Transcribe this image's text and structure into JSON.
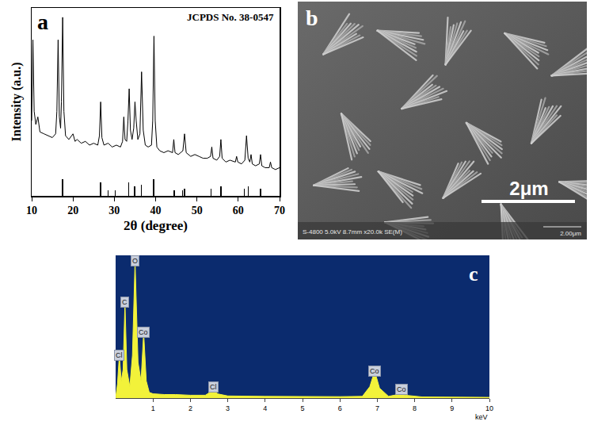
{
  "chart_data": [
    {
      "panel": "a",
      "type": "line",
      "title": "JCPDS No. 38-0547",
      "x_label": "2θ (degree)",
      "y_label": "Intensity (a.u.)",
      "xlim": [
        10,
        70
      ],
      "xticks": [
        10,
        20,
        30,
        40,
        50,
        60,
        70
      ],
      "ylim": [
        0,
        100
      ],
      "tick_labels": "x",
      "grid": false,
      "series": [
        {
          "type": "line",
          "color": "#000000",
          "x": [
            10,
            10.3,
            10.6,
            11,
            11.5,
            12,
            13,
            14,
            15,
            15.8,
            16.1,
            16.4,
            16.7,
            17,
            17.2,
            17.5,
            17.8,
            18.2,
            19,
            20,
            20.5,
            21,
            22,
            23,
            24,
            25,
            26,
            26.4,
            26.7,
            27,
            27.5,
            28.5,
            29.5,
            30.5,
            31.5,
            32,
            32.3,
            32.6,
            33,
            33.3,
            33.6,
            33.9,
            34.3,
            34.7,
            35,
            35.3,
            35.7,
            36.2,
            36.6,
            37,
            37.5,
            38.2,
            39,
            39.3,
            39.6,
            39.9,
            40.3,
            41,
            42,
            43,
            44.1,
            44.4,
            44.7,
            45.5,
            46.6,
            47,
            47.4,
            48.5,
            49.5,
            50.5,
            51.5,
            52.5,
            53.3,
            53.6,
            53.9,
            54.8,
            55.5,
            55.8,
            56.1,
            57,
            58,
            59.3,
            59.6,
            59.9,
            60.8,
            61.6,
            62,
            62.4,
            62.8,
            63.1,
            63.4,
            64.2,
            65.1,
            65.4,
            65.7,
            66.5,
            67.5,
            67.8,
            68.1,
            69,
            70
          ],
          "values": [
            40,
            83,
            45,
            38,
            42,
            34,
            33,
            32,
            31,
            33,
            45,
            83,
            42,
            36,
            50,
            95,
            45,
            32,
            30,
            33,
            29,
            30,
            28,
            29,
            27,
            28,
            27,
            32,
            50,
            31,
            27,
            28,
            26,
            27,
            26,
            29,
            42,
            30,
            29,
            40,
            57,
            35,
            30,
            36,
            50,
            40,
            30,
            33,
            66,
            35,
            27,
            26,
            27,
            40,
            85,
            40,
            26,
            24,
            23,
            24,
            23,
            30,
            23,
            22,
            24,
            33,
            23,
            21,
            22,
            21,
            20,
            20,
            21,
            26,
            20,
            19,
            21,
            30,
            20,
            18,
            19,
            18,
            21,
            18,
            17,
            19,
            32,
            20,
            18,
            22,
            17,
            16,
            17,
            22,
            16,
            15,
            15,
            18,
            15,
            14,
            15
          ]
        },
        {
          "type": "bar",
          "color": "#000000",
          "x": [
            17.5,
            26.7,
            28.5,
            30.2,
            33.5,
            34.9,
            36.5,
            39.5,
            44.5,
            46.5,
            47,
            53.4,
            55.8,
            61.5,
            62.4,
            65.4
          ],
          "values": [
            9,
            7,
            3,
            3,
            7,
            5,
            6,
            9,
            3,
            3,
            4,
            4,
            5,
            4,
            5,
            4
          ]
        }
      ]
    },
    {
      "panel": "c",
      "type": "area",
      "x_label": "keV",
      "xlim": [
        0,
        10
      ],
      "xticks": [
        1,
        2,
        3,
        4,
        5,
        6,
        7,
        8,
        9,
        10
      ],
      "ylim": [
        0,
        100
      ],
      "tick_labels": "x",
      "grid": false,
      "color": "#f2f23a",
      "series": [
        {
          "x": [
            0,
            0.05,
            0.1,
            0.15,
            0.2,
            0.25,
            0.3,
            0.38,
            0.45,
            0.52,
            0.6,
            0.68,
            0.75,
            0.82,
            0.9,
            1,
            1.3,
            1.6,
            2,
            2.4,
            2.52,
            2.62,
            2.72,
            3,
            4,
            5,
            6,
            6.6,
            6.8,
            6.93,
            7.06,
            7.3,
            7.55,
            7.65,
            7.75,
            8.2,
            9,
            10
          ],
          "values": [
            0,
            10,
            30,
            12,
            20,
            67,
            20,
            8,
            30,
            96,
            25,
            12,
            46,
            12,
            4,
            3,
            2.5,
            2.5,
            2,
            2,
            4,
            8,
            3,
            1.5,
            1.2,
            1,
            1,
            1.2,
            8,
            19,
            7,
            1.2,
            2.5,
            6,
            2,
            0.8,
            0.6,
            0.5
          ]
        }
      ],
      "annotations": [
        {
          "text": "Cl",
          "x": 0.1,
          "y": 30
        },
        {
          "text": "C",
          "x": 0.25,
          "y": 67
        },
        {
          "text": "O",
          "x": 0.52,
          "y": 96
        },
        {
          "text": "Co",
          "x": 0.75,
          "y": 46
        },
        {
          "text": "Cl",
          "x": 2.62,
          "y": 8
        },
        {
          "text": "Co",
          "x": 6.93,
          "y": 19
        },
        {
          "text": "Co",
          "x": 7.65,
          "y": 6
        }
      ]
    }
  ],
  "panel_b": {
    "panel": "b",
    "scale_bar": "2μm",
    "info": "S-4800 5.0kV 8.7mm x20.0k SE(M)",
    "info_scale": "2.00μm"
  }
}
